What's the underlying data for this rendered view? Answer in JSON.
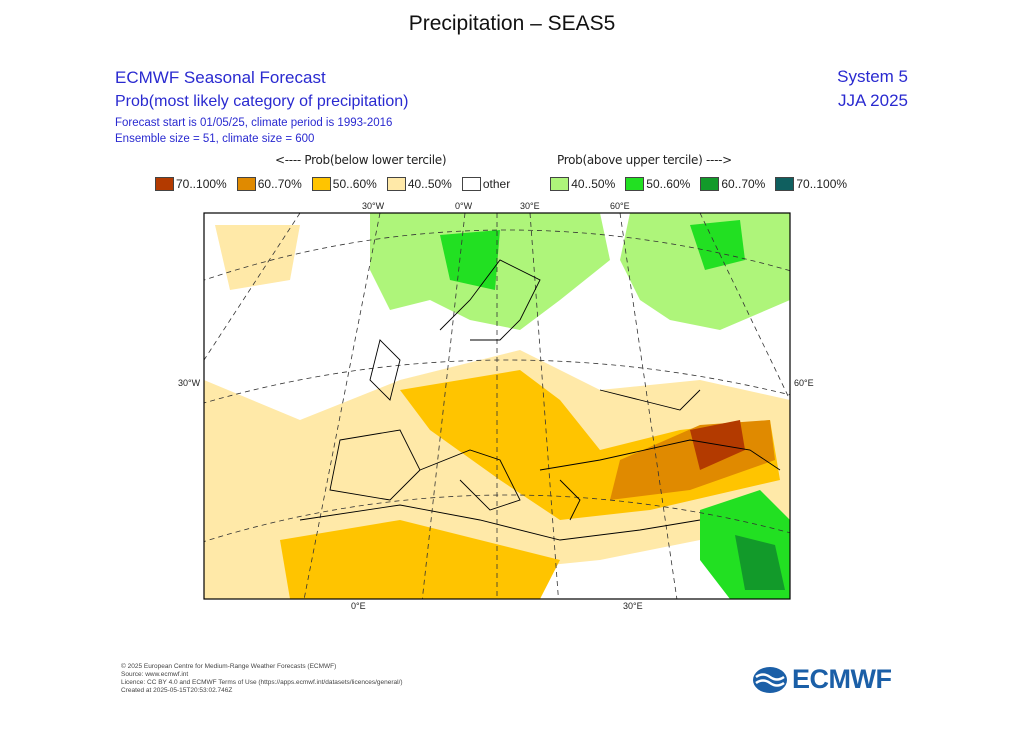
{
  "page_title": "Precipitation – SEAS5",
  "chart_data": {
    "type": "heatmap",
    "title": "ECMWF Seasonal Forecast",
    "subtitle": "Prob(most likely category of precipitation)",
    "forecast_info": "Forecast start is 01/05/25, climate period is 1993-2016",
    "ensemble_info": "Ensemble size = 51, climate size = 600",
    "system": "System 5",
    "season": "JJA 2025",
    "below_label": "<---- Prob(below lower tercile)",
    "above_label": "Prob(above upper tercile) ---->",
    "legend": [
      {
        "label": "70..100%",
        "color": "#b33a00"
      },
      {
        "label": "60..70%",
        "color": "#e08a00"
      },
      {
        "label": "50..60%",
        "color": "#ffc400"
      },
      {
        "label": "40..50%",
        "color": "#ffe9a8"
      },
      {
        "label": "other",
        "color": "#ffffff"
      },
      {
        "label": "40..50%",
        "color": "#aef57a"
      },
      {
        "label": "50..60%",
        "color": "#22e022"
      },
      {
        "label": "60..70%",
        "color": "#129a2a"
      },
      {
        "label": "70..100%",
        "color": "#0f5f5f"
      }
    ],
    "lon_ticks_top": [
      "30°W",
      "0°W",
      "30°E",
      "60°E"
    ],
    "lat_ticks_left": [
      "30°W"
    ],
    "lat_ticks_right": [
      "60°E"
    ],
    "lon_ticks_bottom": [
      "0°E",
      "30°E"
    ]
  },
  "footer": {
    "copyright": "© 2025 European Centre for Medium-Range Weather Forecasts (ECMWF)",
    "source": "Source: www.ecmwf.int",
    "licence": "Licence: CC BY 4.0 and ECMWF Terms of Use (https://apps.ecmwf.int/datasets/licences/general/)",
    "created": "Created at 2025-05-15T20:53:02.746Z"
  },
  "logo_text": "ECMWF"
}
